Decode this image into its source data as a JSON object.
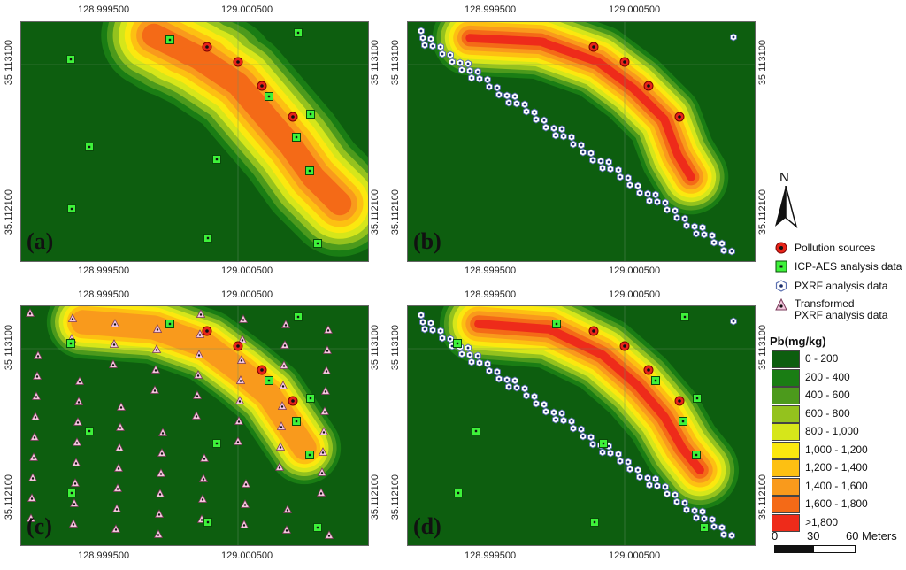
{
  "panels": [
    {
      "id": "a",
      "label": "(a)",
      "top_coords": [
        "128.999500",
        "129.000500"
      ],
      "bottom_coords": [
        "128.999500",
        "129.000500"
      ],
      "left_coords": [
        "35.113100",
        "35.112100"
      ],
      "right_coords": [
        "35.113100",
        "35.112100"
      ]
    },
    {
      "id": "b",
      "label": "(b)",
      "top_coords": [
        "128.999500",
        "129.000500"
      ],
      "bottom_coords": [
        "128.999500",
        "129.000500"
      ],
      "left_coords": [
        "35.113100",
        "35.112100"
      ],
      "right_coords": [
        "35.113100",
        "35.112100"
      ]
    },
    {
      "id": "c",
      "label": "(c)",
      "top_coords": [
        "128.999500",
        "129.000500"
      ],
      "bottom_coords": [
        "128.999500",
        "129.000500"
      ],
      "left_coords": [
        "35.113100",
        "35.112100"
      ],
      "right_coords": [
        "35.113100",
        "35.112100"
      ]
    },
    {
      "id": "d",
      "label": "(d)",
      "top_coords": [
        "128.999500",
        "129.000500"
      ],
      "bottom_coords": [
        "128.999500",
        "129.000500"
      ],
      "left_coords": [
        "35.113100",
        "35.112100"
      ],
      "right_coords": [
        "35.113100",
        "35.112100"
      ]
    }
  ],
  "north_label": "N",
  "legend": {
    "pollution": "Pollution sources",
    "icp": "ICP-AES  analysis data",
    "pxrf": "PXRF analysis data",
    "transformed_1": "Transformed",
    "transformed_2": "PXRF analysis data"
  },
  "pb_legend": {
    "title": "Pb(mg/kg)",
    "classes": [
      {
        "label": "0 - 200",
        "color": "#0d5e0f"
      },
      {
        "label": "200 - 400",
        "color": "#1a7d14"
      },
      {
        "label": "400 - 600",
        "color": "#4c9a1c"
      },
      {
        "label": "600 - 800",
        "color": "#94c21e"
      },
      {
        "label": "800 - 1,000",
        "color": "#d6e61a"
      },
      {
        "label": "1,000 - 1,200",
        "color": "#fbe80f"
      },
      {
        "label": "1,200 - 1,400",
        "color": "#fdc012"
      },
      {
        "label": "1,400 - 1,600",
        "color": "#f99a1c"
      },
      {
        "label": "1,600 - 1,800",
        "color": "#f46a17"
      },
      {
        "label": ">1,800",
        "color": "#ee2b1a"
      }
    ]
  },
  "scale": {
    "ticks": [
      "0",
      "30",
      "60"
    ],
    "unit": "Meters"
  }
}
